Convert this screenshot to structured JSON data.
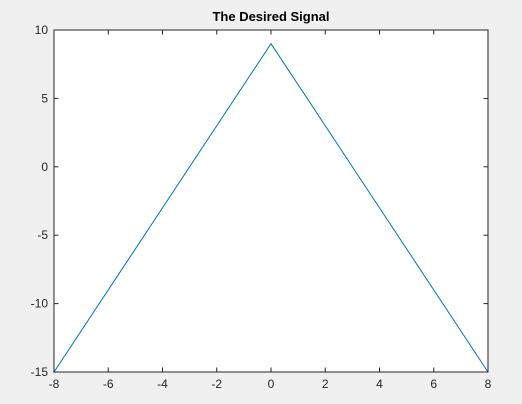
{
  "chart_data": {
    "type": "line",
    "title": "The Desired Signal",
    "xlabel": "",
    "ylabel": "",
    "xlim": [
      -8,
      8
    ],
    "ylim": [
      -15,
      10
    ],
    "xticks": [
      -8,
      -6,
      -4,
      -2,
      0,
      2,
      4,
      6,
      8
    ],
    "yticks": [
      10,
      5,
      0,
      -5,
      -10,
      -15
    ],
    "grid": false,
    "line_color": "#0072bd",
    "series": [
      {
        "x": [
          -8,
          -8,
          0,
          8
        ],
        "y": [
          0,
          -15,
          9,
          -15
        ]
      }
    ]
  }
}
